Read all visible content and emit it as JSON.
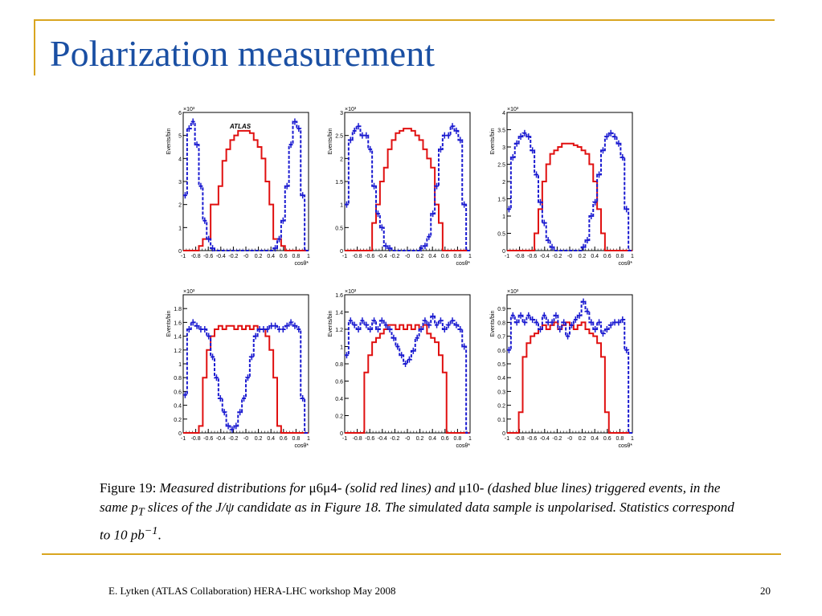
{
  "slide": {
    "title": "Polarization measurement",
    "footer": "E. Lytken  (ATLAS Collaboration) HERA-LHC workshop May 2008",
    "page_number": "20",
    "colors": {
      "accent": "#d9a520",
      "title": "#1a4fa3",
      "red_series": "#e01010",
      "blue_series": "#1a1ad0"
    }
  },
  "caption": {
    "prefix": "Figure 19: ",
    "part1": "Measured distributions for ",
    "mu_trigger_red": "μ6μ4-",
    "part2": " (solid red lines) and ",
    "mu_trigger_blue": "μ10-",
    "part3": " (dashed blue lines) triggered events, in the same ",
    "pt": "p",
    "pt_sub": "T",
    "part4": " slices of the ",
    "jpsi": "J/ψ",
    "part5": " candidate as in Figure 18. The simulated data sample is unpolarised. Statistics correspond to 10 ",
    "pb": "pb",
    "pb_exp": "−1",
    "end": "."
  },
  "chart_data": [
    {
      "type": "histogram",
      "label": "ATLAS",
      "ylabel": "Events/bin",
      "xlabel": "cosθ*",
      "exponent": "×10³",
      "xlim": [
        -1,
        1
      ],
      "ylim": [
        0,
        6
      ],
      "yticks": [
        0,
        1,
        2,
        3,
        4,
        5,
        6
      ],
      "xticks": [
        "-1",
        "-0.8",
        "-0.6",
        "-0.4",
        "-0.2",
        "-0",
        "0.2",
        "0.4",
        "0.6",
        "0.8",
        "1"
      ],
      "series": [
        {
          "style": "solid",
          "color": "red",
          "values": [
            0,
            0,
            0,
            0,
            0.2,
            0.5,
            0.5,
            2.0,
            2.0,
            2.8,
            3.9,
            4.4,
            4.8,
            5.0,
            5.2,
            5.2,
            5.2,
            5.1,
            4.8,
            4.5,
            4.0,
            3.0,
            2.0,
            0.5,
            0.5,
            0.2,
            0,
            0,
            0,
            0,
            0,
            0
          ]
        },
        {
          "style": "dashed",
          "color": "blue",
          "values": [
            2.4,
            5.3,
            5.6,
            4.6,
            2.8,
            1.3,
            0.5,
            0.1,
            0,
            0,
            0,
            0,
            0,
            0,
            0,
            0,
            0,
            0,
            0,
            0,
            0,
            0,
            0,
            0.1,
            0.5,
            1.3,
            2.8,
            4.6,
            5.6,
            5.3,
            2.4,
            0
          ]
        }
      ]
    },
    {
      "type": "histogram",
      "ylabel": "Events/bin",
      "xlabel": "cosθ*",
      "exponent": "×10³",
      "xlim": [
        -1,
        1
      ],
      "ylim": [
        0,
        3
      ],
      "yticks": [
        0,
        0.5,
        1,
        1.5,
        2,
        2.5,
        3
      ],
      "xticks": [
        "-1",
        "-0.8",
        "-0.6",
        "-0.4",
        "-0.2",
        "-0",
        "0.2",
        "0.4",
        "0.6",
        "0.8",
        "1"
      ],
      "series": [
        {
          "style": "solid",
          "color": "red",
          "values": [
            0,
            0,
            0,
            0,
            0,
            0,
            0,
            0.6,
            1.0,
            1.5,
            1.8,
            2.2,
            2.4,
            2.55,
            2.6,
            2.65,
            2.65,
            2.6,
            2.5,
            2.4,
            2.2,
            2.0,
            1.8,
            1.0,
            0.6,
            0,
            0,
            0,
            0,
            0,
            0,
            0
          ]
        },
        {
          "style": "dashed",
          "color": "blue",
          "values": [
            1.0,
            2.4,
            2.6,
            2.7,
            2.5,
            2.5,
            2.2,
            1.4,
            0.8,
            0.5,
            0.1,
            0.05,
            0,
            0,
            0,
            0,
            0,
            0,
            0,
            0.05,
            0.1,
            0.3,
            0.8,
            1.4,
            2.2,
            2.5,
            2.5,
            2.7,
            2.6,
            2.4,
            1.0,
            0
          ]
        }
      ]
    },
    {
      "type": "histogram",
      "ylabel": "Events/bin",
      "xlabel": "cosθ*",
      "exponent": "×10³",
      "xlim": [
        -1,
        1
      ],
      "ylim": [
        0,
        4
      ],
      "yticks": [
        0,
        0.5,
        1,
        1.5,
        2,
        2.5,
        3,
        3.5,
        4
      ],
      "xticks": [
        "-1",
        "-0.8",
        "-0.6",
        "-0.4",
        "-0.2",
        "-0",
        "0.2",
        "0.4",
        "0.6",
        "0.8",
        "1"
      ],
      "series": [
        {
          "style": "solid",
          "color": "red",
          "values": [
            0,
            0,
            0,
            0,
            0,
            0,
            0,
            0.5,
            1.2,
            2.0,
            2.5,
            2.8,
            2.9,
            3.0,
            3.1,
            3.1,
            3.1,
            3.05,
            3.0,
            2.9,
            2.8,
            2.5,
            2.0,
            1.2,
            0.5,
            0,
            0,
            0,
            0,
            0,
            0,
            0
          ]
        },
        {
          "style": "dashed",
          "color": "blue",
          "values": [
            1.2,
            2.7,
            3.1,
            3.3,
            3.4,
            3.3,
            2.9,
            2.2,
            1.4,
            0.8,
            0.3,
            0.1,
            0,
            0,
            0,
            0,
            0,
            0,
            0,
            0.1,
            0.3,
            1.0,
            1.4,
            2.2,
            2.9,
            3.3,
            3.4,
            3.3,
            3.1,
            2.7,
            1.2,
            0
          ]
        }
      ]
    },
    {
      "type": "histogram",
      "ylabel": "Events/bin",
      "xlabel": "cosθ*",
      "exponent": "×10³",
      "xlim": [
        -1,
        1
      ],
      "ylim": [
        0,
        2
      ],
      "yticks": [
        0,
        0.2,
        0.4,
        0.6,
        0.8,
        1,
        1.2,
        1.4,
        1.6,
        1.8
      ],
      "xticks": [
        "-1",
        "-0.8",
        "-0.6",
        "-0.4",
        "-0.2",
        "-0",
        "0.2",
        "0.4",
        "0.6",
        "0.8",
        "1"
      ],
      "series": [
        {
          "style": "solid",
          "color": "red",
          "values": [
            0,
            0,
            0,
            0,
            0.1,
            0.8,
            1.2,
            1.4,
            1.5,
            1.55,
            1.5,
            1.55,
            1.55,
            1.5,
            1.55,
            1.5,
            1.55,
            1.5,
            1.55,
            1.5,
            1.5,
            1.4,
            1.2,
            0.8,
            0.1,
            0,
            0,
            0,
            0,
            0,
            0,
            0
          ]
        },
        {
          "style": "dashed",
          "color": "blue",
          "values": [
            0.55,
            1.5,
            1.6,
            1.55,
            1.5,
            1.5,
            1.4,
            1.1,
            0.8,
            0.5,
            0.3,
            0.1,
            0.05,
            0.1,
            0.3,
            0.5,
            0.8,
            1.1,
            1.4,
            1.5,
            1.5,
            1.5,
            1.55,
            1.55,
            1.5,
            1.5,
            1.55,
            1.6,
            1.55,
            1.5,
            0.5,
            0
          ]
        }
      ]
    },
    {
      "type": "histogram",
      "ylabel": "Events/bin",
      "xlabel": "cosθ*",
      "exponent": "×10³",
      "xlim": [
        -1,
        1
      ],
      "ylim": [
        0,
        1.6
      ],
      "yticks": [
        0,
        0.2,
        0.4,
        0.6,
        0.8,
        1,
        1.2,
        1.4,
        1.6
      ],
      "xticks": [
        "-1",
        "-0.8",
        "-0.6",
        "-0.4",
        "-0.2",
        "-0",
        "0.2",
        "0.4",
        "0.6",
        "0.8",
        "1"
      ],
      "series": [
        {
          "style": "solid",
          "color": "red",
          "values": [
            0,
            0,
            0,
            0,
            0,
            0.7,
            0.9,
            1.05,
            1.1,
            1.15,
            1.2,
            1.25,
            1.25,
            1.2,
            1.25,
            1.2,
            1.25,
            1.2,
            1.25,
            1.2,
            1.25,
            1.15,
            1.1,
            1.05,
            0.9,
            0.7,
            0,
            0,
            0,
            0,
            0,
            0
          ]
        },
        {
          "style": "dashed",
          "color": "blue",
          "values": [
            0.9,
            1.3,
            1.25,
            1.2,
            1.3,
            1.25,
            1.2,
            1.3,
            1.2,
            1.3,
            1.25,
            1.2,
            1.1,
            1.0,
            0.9,
            0.8,
            0.85,
            0.95,
            1.1,
            1.2,
            1.3,
            1.25,
            1.35,
            1.25,
            1.3,
            1.2,
            1.25,
            1.3,
            1.25,
            1.2,
            1.0,
            0
          ]
        }
      ]
    },
    {
      "type": "histogram",
      "ylabel": "Events/bin",
      "xlabel": "cosθ*",
      "exponent": "×10³",
      "xlim": [
        -1,
        1
      ],
      "ylim": [
        0,
        1
      ],
      "yticks": [
        0,
        0.1,
        0.2,
        0.3,
        0.4,
        0.5,
        0.6,
        0.7,
        0.8,
        0.9
      ],
      "xticks": [
        "-1",
        "-0.8",
        "-0.6",
        "-0.4",
        "-0.2",
        "-0",
        "0.2",
        "0.4",
        "0.6",
        "0.8",
        "1"
      ],
      "series": [
        {
          "style": "solid",
          "color": "red",
          "values": [
            0,
            0,
            0,
            0.15,
            0.55,
            0.65,
            0.7,
            0.72,
            0.75,
            0.78,
            0.75,
            0.78,
            0.8,
            0.75,
            0.78,
            0.8,
            0.78,
            0.75,
            0.78,
            0.8,
            0.75,
            0.72,
            0.7,
            0.65,
            0.55,
            0.15,
            0,
            0,
            0,
            0,
            0,
            0
          ]
        },
        {
          "style": "dashed",
          "color": "blue",
          "values": [
            0.6,
            0.85,
            0.8,
            0.85,
            0.8,
            0.85,
            0.82,
            0.8,
            0.75,
            0.85,
            0.8,
            0.8,
            0.85,
            0.75,
            0.8,
            0.7,
            0.78,
            0.82,
            0.85,
            0.95,
            0.88,
            0.8,
            0.75,
            0.8,
            0.72,
            0.75,
            0.78,
            0.8,
            0.8,
            0.82,
            0.6,
            0
          ]
        }
      ]
    }
  ]
}
